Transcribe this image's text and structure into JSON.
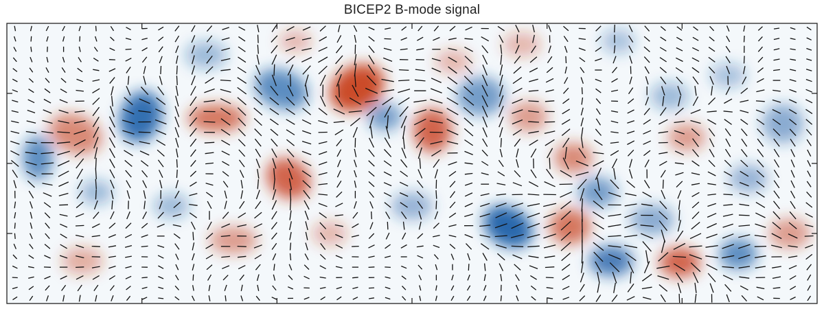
{
  "chart_data": {
    "type": "heatmap",
    "title": "BICEP2 B-mode signal",
    "xlabel": "",
    "ylabel": "",
    "legend": "none",
    "grid": false,
    "colormap": {
      "negative": "#1f5fa8",
      "zero": "#f7fafc",
      "positive": "#c8401f"
    },
    "overlay": "polarization-vectors",
    "x_ticks_count": 5,
    "y_ticks_count": 3,
    "vector_field_rows": 27,
    "vector_field_cols": 50
  },
  "colors": {
    "frame": "#222222",
    "vector": "#111111"
  }
}
